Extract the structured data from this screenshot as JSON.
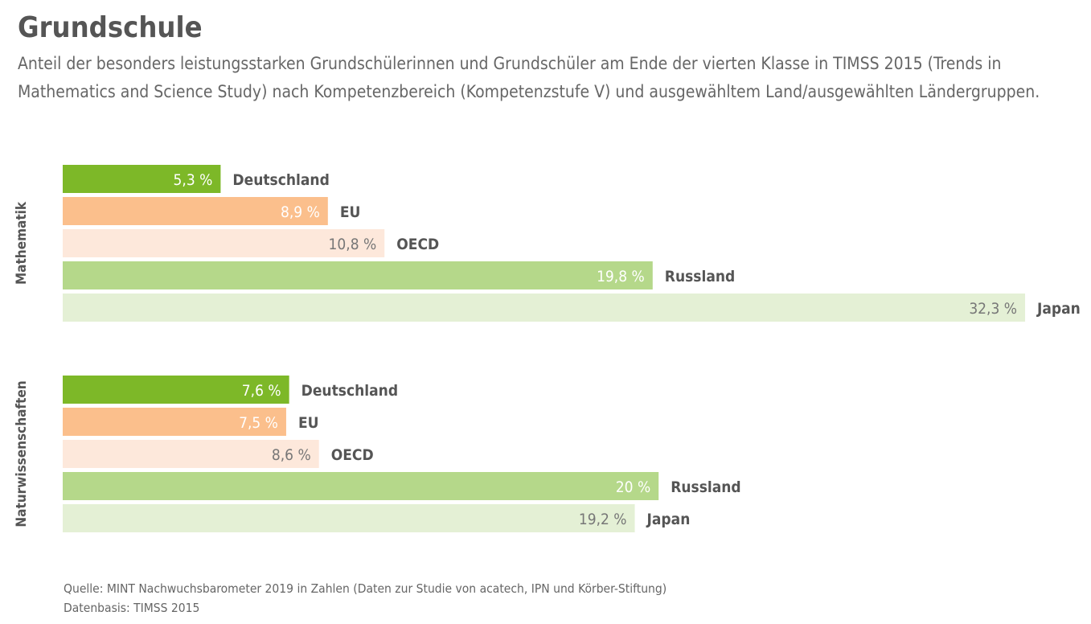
{
  "title": "Grundschule",
  "subtitle": "Anteil der besonders leistungsstarken Grundschülerinnen und Grundschüler am Ende der vierten Klasse in TIMSS 2015 (Trends in Mathematics and Science Study) nach Kompetenzbereich (Kompetenzstufe V) und ausgewähltem Land/ausgewählten Ländergruppen.",
  "source": [
    "Quelle: MINT Nachwuchsbarometer 2019 in Zahlen (Daten zur Studie von acatech, IPN und Körber-Stiftung)",
    "Datenbasis: TIMSS 2015"
  ],
  "chart_data": [
    {
      "type": "bar",
      "orientation": "horizontal",
      "group": "Mathematik",
      "categories": [
        "Deutschland",
        "EU",
        "OECD",
        "Russland",
        "Japan"
      ],
      "values": [
        5.3,
        8.9,
        10.8,
        19.8,
        32.3
      ],
      "value_labels": [
        "5,3 %",
        "8,9 %",
        "10,8 %",
        "19,8 %",
        "32,3 %"
      ]
    },
    {
      "type": "bar",
      "orientation": "horizontal",
      "group": "Naturwissenschaften",
      "categories": [
        "Deutschland",
        "EU",
        "OECD",
        "Russland",
        "Japan"
      ],
      "values": [
        7.6,
        7.5,
        8.6,
        20,
        19.2
      ],
      "value_labels": [
        "7,6 %",
        "7,5 %",
        "8,6 %",
        "20 %",
        "19,2 %"
      ]
    }
  ],
  "colors": {
    "Deutschland": "#7db828",
    "EU": "#fbbf8c",
    "OECD": "#fde8db",
    "Russland": "#b5d88a",
    "Japan": "#e4f0d5"
  },
  "label_colors": {
    "Deutschland": "#ffffff",
    "EU": "#ffffff",
    "OECD": "#777777",
    "Russland": "#ffffff",
    "Japan": "#777777"
  }
}
